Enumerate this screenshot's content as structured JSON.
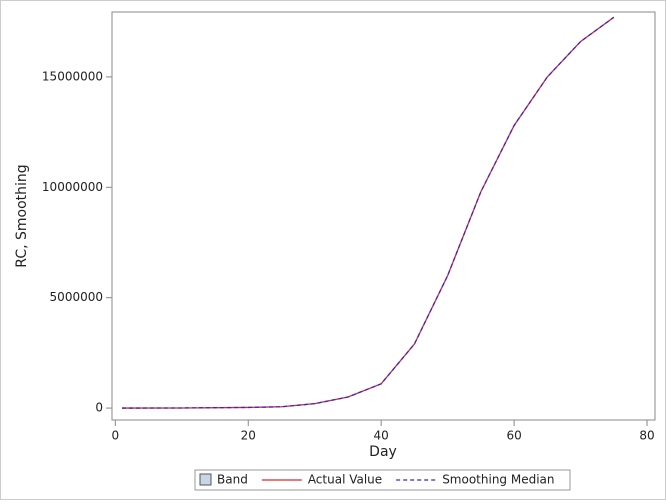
{
  "chart_data": {
    "type": "line",
    "x_label": "Day",
    "y_label": "RC, Smoothing",
    "x": [
      1,
      10,
      20,
      25,
      30,
      35,
      40,
      45,
      50,
      55,
      60,
      65,
      70,
      75
    ],
    "series": [
      {
        "name": "Actual Value",
        "color": "#e0262a",
        "dash": false,
        "values": [
          0,
          5000,
          30000,
          60000,
          200000,
          500000,
          1100000,
          2900000,
          6000000,
          9800000,
          12800000,
          15000000,
          16600000,
          17700000
        ]
      },
      {
        "name": "Smoothing Median",
        "color": "#2b2bd0",
        "dash": true,
        "values": [
          0,
          5000,
          30000,
          60000,
          200000,
          500000,
          1100000,
          2900000,
          6000000,
          9800000,
          12800000,
          15000000,
          16600000,
          17700000
        ]
      }
    ],
    "band_name": "Band",
    "band_color": "#c9d6e6",
    "xlim": [
      -0.5,
      81.2
    ],
    "xticks": [
      0,
      20,
      40,
      60,
      80
    ],
    "ylim": [
      -540000,
      17940000
    ],
    "yticks": [
      0,
      5000000,
      10000000,
      15000000
    ]
  }
}
